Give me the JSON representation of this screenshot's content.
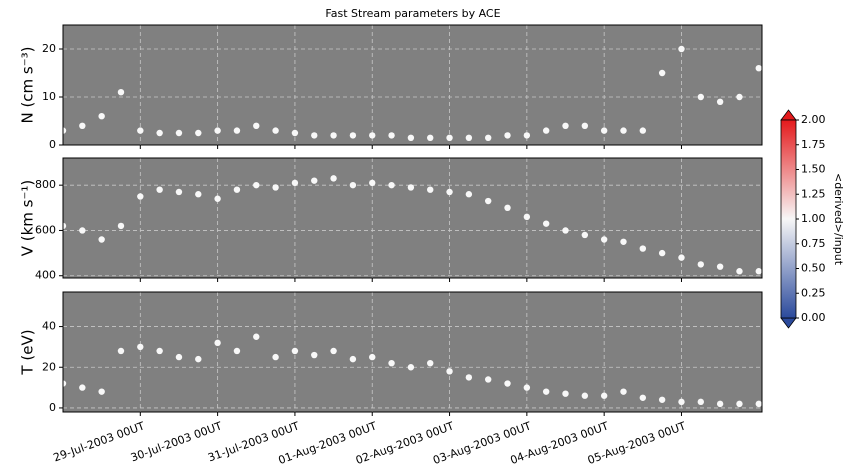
{
  "chart_data": [
    {
      "type": "scatter",
      "title": "Fast Stream parameters by ACE",
      "ylabel": "N (cm s⁻³)",
      "color": "#f8f8f8",
      "background": "#808080",
      "grid": true,
      "xlim": [
        "2003-07-28T00:00",
        "2003-08-06T01:00"
      ],
      "ylim": [
        0,
        25
      ],
      "yticks": [
        0,
        10,
        20
      ],
      "x": [
        "2003-07-28T00:00",
        "2003-07-28T06:00",
        "2003-07-28T12:00",
        "2003-07-28T18:00",
        "2003-07-29T00:00",
        "2003-07-29T06:00",
        "2003-07-29T12:00",
        "2003-07-29T18:00",
        "2003-07-30T00:00",
        "2003-07-30T06:00",
        "2003-07-30T12:00",
        "2003-07-30T18:00",
        "2003-07-31T00:00",
        "2003-07-31T06:00",
        "2003-07-31T12:00",
        "2003-07-31T18:00",
        "2003-08-01T00:00",
        "2003-08-01T06:00",
        "2003-08-01T12:00",
        "2003-08-01T18:00",
        "2003-08-02T00:00",
        "2003-08-02T06:00",
        "2003-08-02T12:00",
        "2003-08-02T18:00",
        "2003-08-03T00:00",
        "2003-08-03T06:00",
        "2003-08-03T12:00",
        "2003-08-03T18:00",
        "2003-08-04T00:00",
        "2003-08-04T06:00",
        "2003-08-04T12:00",
        "2003-08-04T18:00",
        "2003-08-05T00:00",
        "2003-08-05T06:00",
        "2003-08-05T12:00",
        "2003-08-05T18:00",
        "2003-08-06T00:00"
      ],
      "values": [
        3,
        4,
        6,
        11,
        3,
        2.5,
        2.5,
        2.5,
        3,
        3,
        4,
        3,
        2.5,
        2,
        2,
        2,
        2,
        2,
        1.5,
        1.5,
        1.5,
        1.5,
        1.5,
        2,
        2,
        3,
        4,
        4,
        3,
        3,
        3,
        15,
        20,
        10,
        9,
        10,
        16
      ]
    },
    {
      "type": "scatter",
      "ylabel": "V (km s⁻¹)",
      "color": "#f8f8f8",
      "background": "#808080",
      "grid": true,
      "xlim": [
        "2003-07-28T00:00",
        "2003-08-06T01:00"
      ],
      "ylim": [
        390,
        920
      ],
      "yticks": [
        400,
        600,
        800
      ],
      "x": [
        "2003-07-28T00:00",
        "2003-07-28T06:00",
        "2003-07-28T12:00",
        "2003-07-28T18:00",
        "2003-07-29T00:00",
        "2003-07-29T06:00",
        "2003-07-29T12:00",
        "2003-07-29T18:00",
        "2003-07-30T00:00",
        "2003-07-30T06:00",
        "2003-07-30T12:00",
        "2003-07-30T18:00",
        "2003-07-31T00:00",
        "2003-07-31T06:00",
        "2003-07-31T12:00",
        "2003-07-31T18:00",
        "2003-08-01T00:00",
        "2003-08-01T06:00",
        "2003-08-01T12:00",
        "2003-08-01T18:00",
        "2003-08-02T00:00",
        "2003-08-02T06:00",
        "2003-08-02T12:00",
        "2003-08-02T18:00",
        "2003-08-03T00:00",
        "2003-08-03T06:00",
        "2003-08-03T12:00",
        "2003-08-03T18:00",
        "2003-08-04T00:00",
        "2003-08-04T06:00",
        "2003-08-04T12:00",
        "2003-08-04T18:00",
        "2003-08-05T00:00",
        "2003-08-05T06:00",
        "2003-08-05T12:00",
        "2003-08-05T18:00",
        "2003-08-06T00:00"
      ],
      "values": [
        620,
        600,
        560,
        620,
        750,
        780,
        770,
        760,
        740,
        780,
        800,
        790,
        810,
        820,
        830,
        800,
        810,
        800,
        790,
        780,
        770,
        760,
        730,
        700,
        660,
        630,
        600,
        580,
        560,
        550,
        520,
        500,
        480,
        450,
        440,
        420,
        420
      ]
    },
    {
      "type": "scatter",
      "ylabel": "T (eV)",
      "color": "#f8f8f8",
      "background": "#808080",
      "grid": true,
      "xlim": [
        "2003-07-28T00:00",
        "2003-08-06T01:00"
      ],
      "ylim": [
        -2,
        57
      ],
      "yticks": [
        0,
        20,
        40
      ],
      "xticks": [
        {
          "value": "2003-07-29T00:00",
          "label": "29-Jul-2003 00UT"
        },
        {
          "value": "2003-07-30T00:00",
          "label": "30-Jul-2003 00UT"
        },
        {
          "value": "2003-07-31T00:00",
          "label": "31-Jul-2003 00UT"
        },
        {
          "value": "2003-08-01T00:00",
          "label": "01-Aug-2003 00UT"
        },
        {
          "value": "2003-08-02T00:00",
          "label": "02-Aug-2003 00UT"
        },
        {
          "value": "2003-08-03T00:00",
          "label": "03-Aug-2003 00UT"
        },
        {
          "value": "2003-08-04T00:00",
          "label": "04-Aug-2003 00UT"
        },
        {
          "value": "2003-08-05T00:00",
          "label": "05-Aug-2003 00UT"
        }
      ],
      "x": [
        "2003-07-28T00:00",
        "2003-07-28T06:00",
        "2003-07-28T12:00",
        "2003-07-28T18:00",
        "2003-07-29T00:00",
        "2003-07-29T06:00",
        "2003-07-29T12:00",
        "2003-07-29T18:00",
        "2003-07-30T00:00",
        "2003-07-30T06:00",
        "2003-07-30T12:00",
        "2003-07-30T18:00",
        "2003-07-31T00:00",
        "2003-07-31T06:00",
        "2003-07-31T12:00",
        "2003-07-31T18:00",
        "2003-08-01T00:00",
        "2003-08-01T06:00",
        "2003-08-01T12:00",
        "2003-08-01T18:00",
        "2003-08-02T00:00",
        "2003-08-02T06:00",
        "2003-08-02T12:00",
        "2003-08-02T18:00",
        "2003-08-03T00:00",
        "2003-08-03T06:00",
        "2003-08-03T12:00",
        "2003-08-03T18:00",
        "2003-08-04T00:00",
        "2003-08-04T06:00",
        "2003-08-04T12:00",
        "2003-08-04T18:00",
        "2003-08-05T00:00",
        "2003-08-05T06:00",
        "2003-08-05T12:00",
        "2003-08-05T18:00",
        "2003-08-06T00:00"
      ],
      "values": [
        12,
        10,
        8,
        28,
        30,
        28,
        25,
        24,
        32,
        28,
        35,
        25,
        28,
        26,
        28,
        24,
        25,
        22,
        20,
        22,
        18,
        15,
        14,
        12,
        10,
        8,
        7,
        6,
        6,
        8,
        5,
        4,
        3,
        3,
        2,
        2,
        2
      ]
    }
  ],
  "colorbar": {
    "label": "<derived>/input",
    "lim": [
      0,
      2
    ],
    "ticks": [
      {
        "value": 0,
        "label": "0.00"
      },
      {
        "value": 0.25,
        "label": "0.25"
      },
      {
        "value": 0.5,
        "label": "0.50"
      },
      {
        "value": 0.75,
        "label": "0.75"
      },
      {
        "value": 1,
        "label": "1.00"
      },
      {
        "value": 1.25,
        "label": "1.25"
      },
      {
        "value": 1.5,
        "label": "1.50"
      },
      {
        "value": 1.75,
        "label": "1.75"
      },
      {
        "value": 2,
        "label": "2.00"
      }
    ]
  }
}
